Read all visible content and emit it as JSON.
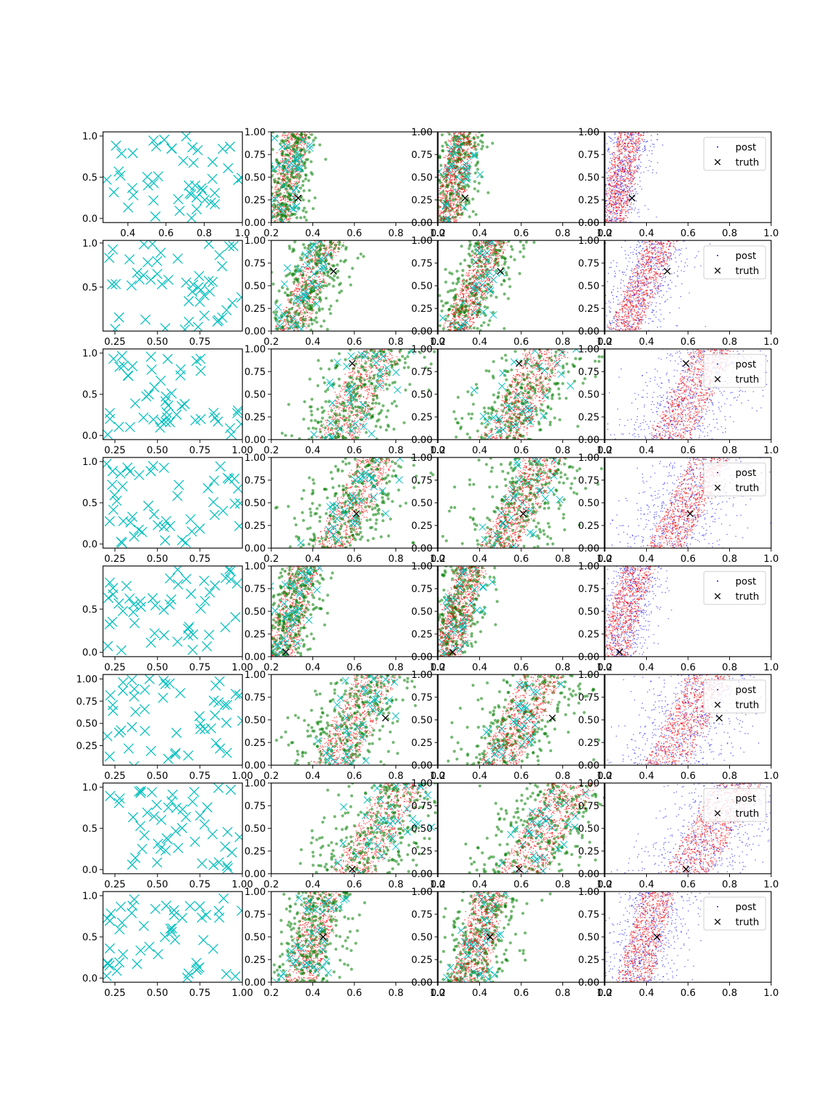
{
  "chart_data": {
    "type": "scatter",
    "title": "",
    "grid": false,
    "legend": {
      "entries": [
        "post",
        "truth"
      ],
      "placement": "upper right"
    },
    "colors": {
      "observed": "#00BFBF",
      "green": "#008000",
      "red": "#FF0000",
      "blue": "#0000FF",
      "truth": "#000000"
    },
    "columns": [
      {
        "name": "observations",
        "marker": "x",
        "color": "cyan"
      },
      {
        "name": "posterior-red-green",
        "layers": [
          "red small dots",
          "green circles",
          "cyan x",
          "black truth x"
        ]
      },
      {
        "name": "posterior-green-red",
        "layers": [
          "green circles",
          "cyan x",
          "red small dots",
          "black truth x"
        ]
      },
      {
        "name": "posterior-blue-red",
        "layers": [
          "blue small dots (post)",
          "red small dots",
          "black truth x (truth)"
        ],
        "legend": [
          "post",
          "truth"
        ]
      }
    ],
    "post_axes": {
      "xlim": [
        0.2,
        1.0
      ],
      "ylim": [
        0.0,
        1.0
      ],
      "xticks": [
        "0.2",
        "0.4",
        "0.6",
        "0.8",
        "1.0"
      ],
      "yticks": [
        "0.00",
        "0.25",
        "0.50",
        "0.75",
        "1.00"
      ]
    },
    "rows": [
      {
        "truth": [
          0.33,
          0.27
        ],
        "band": {
          "x0": 0.28,
          "w": 0.12,
          "s": 0.09,
          "spread": 0.05
        },
        "obs_axes": {
          "xlim": [
            0.27,
            1.0
          ],
          "ylim": [
            -0.05,
            1.05
          ],
          "xticks": [
            "0.4",
            "0.6",
            "0.8",
            "1.0"
          ],
          "yticks": [
            "0.0",
            "0.5",
            "1.0"
          ]
        }
      },
      {
        "truth": [
          0.5,
          0.66
        ],
        "band": {
          "x0": 0.38,
          "w": 0.14,
          "s": 0.18,
          "spread": 0.07
        },
        "obs_axes": {
          "xlim": [
            0.18,
            1.0
          ],
          "ylim": [
            0.0,
            1.03
          ],
          "xticks": [
            "0.25",
            "0.50",
            "0.75"
          ],
          "yticks": [
            "0.5",
            "1.0"
          ]
        }
      },
      {
        "truth": [
          0.59,
          0.84
        ],
        "band": {
          "x0": 0.62,
          "w": 0.2,
          "s": 0.22,
          "spread": 0.12
        },
        "obs_axes": {
          "xlim": [
            0.18,
            1.0
          ],
          "ylim": [
            -0.05,
            1.05
          ],
          "xticks": [
            "0.25",
            "0.50",
            "0.75",
            "1.00"
          ],
          "yticks": [
            "0.0",
            "0.5",
            "1.0"
          ]
        }
      },
      {
        "truth": [
          0.61,
          0.38
        ],
        "band": {
          "x0": 0.6,
          "w": 0.18,
          "s": 0.22,
          "spread": 0.12
        },
        "obs_axes": {
          "xlim": [
            0.18,
            1.0
          ],
          "ylim": [
            -0.05,
            1.05
          ],
          "xticks": [
            "0.25",
            "0.50",
            "0.75"
          ],
          "yticks": [
            "0.0",
            "0.5",
            "1.0"
          ]
        }
      },
      {
        "truth": [
          0.27,
          0.05
        ],
        "band": {
          "x0": 0.3,
          "w": 0.14,
          "s": 0.12,
          "spread": 0.06
        },
        "obs_axes": {
          "xlim": [
            0.18,
            1.0
          ],
          "ylim": [
            -0.05,
            1.0
          ],
          "xticks": [
            "0.25",
            "0.50",
            "0.75",
            "1.00"
          ],
          "yticks": [
            "0.0",
            "0.5"
          ]
        }
      },
      {
        "truth": [
          0.75,
          0.52
        ],
        "band": {
          "x0": 0.6,
          "w": 0.2,
          "s": 0.22,
          "spread": 0.12
        },
        "obs_axes": {
          "xlim": [
            0.18,
            1.0
          ],
          "ylim": [
            0.03,
            1.05
          ],
          "xticks": [
            "0.25",
            "0.50",
            "0.75",
            "1.00"
          ],
          "yticks": [
            "0.25",
            "0.50",
            "0.75",
            "1.00"
          ]
        }
      },
      {
        "truth": [
          0.59,
          0.05
        ],
        "band": {
          "x0": 0.72,
          "w": 0.22,
          "s": 0.25,
          "spread": 0.13
        },
        "obs_axes": {
          "xlim": [
            0.18,
            1.0
          ],
          "ylim": [
            -0.05,
            1.05
          ],
          "xticks": [
            "0.25",
            "0.50",
            "0.75",
            "1.00"
          ],
          "yticks": [
            "0.0",
            "0.5",
            "1.0"
          ]
        }
      },
      {
        "truth": [
          0.45,
          0.5
        ],
        "band": {
          "x0": 0.4,
          "w": 0.16,
          "s": 0.12,
          "spread": 0.08
        },
        "obs_axes": {
          "xlim": [
            0.18,
            1.0
          ],
          "ylim": [
            -0.05,
            1.05
          ],
          "xticks": [
            "0.25",
            "0.50",
            "0.75",
            "1.00"
          ],
          "yticks": [
            "0.0",
            "0.5",
            "1.0"
          ]
        }
      }
    ]
  }
}
